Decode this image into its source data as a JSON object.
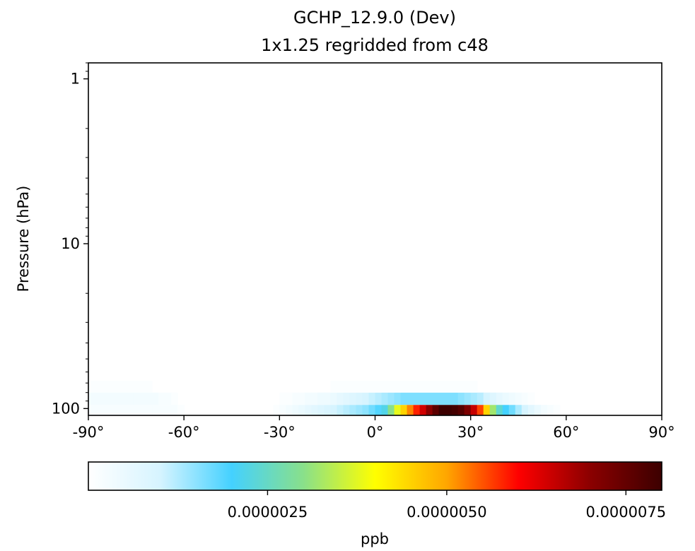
{
  "chart_data": {
    "type": "heatmap",
    "title": "GCHP_12.9.0 (Dev)",
    "subtitle": "1x1.25 regridded from c48",
    "xlabel": "",
    "ylabel": "Pressure (hPa)",
    "xlim": [
      -90,
      90
    ],
    "ylim": [
      110,
      0.8
    ],
    "y_scale": "log",
    "xticks": [
      {
        "value": -90,
        "label": "-90°"
      },
      {
        "value": -60,
        "label": "-60°"
      },
      {
        "value": -30,
        "label": "-30°"
      },
      {
        "value": 0,
        "label": "0°"
      },
      {
        "value": 30,
        "label": "30°"
      },
      {
        "value": 60,
        "label": "60°"
      },
      {
        "value": 90,
        "label": "90°"
      }
    ],
    "yticks": [
      {
        "value": 1,
        "label": "1"
      },
      {
        "value": 10,
        "label": "10"
      },
      {
        "value": 100,
        "label": "100"
      }
    ],
    "colormap": [
      "#ffffff",
      "#d6f4ff",
      "#44d1ff",
      "#89e08a",
      "#ffff00",
      "#ffa600",
      "#ff0000",
      "#8b0000",
      "#3c0000"
    ],
    "colorbar": {
      "label": "ppb",
      "min": 0,
      "max": 8e-06,
      "ticks": [
        {
          "value": 2.5e-06,
          "label": "0.0000025"
        },
        {
          "value": 5e-06,
          "label": "0.0000050"
        },
        {
          "value": 7.5e-06,
          "label": "0.0000075"
        }
      ]
    },
    "layers": [
      {
        "pressure_top": 95,
        "pressure_bottom": 110,
        "lat_step": 2,
        "lat_start": -90,
        "values": [
          2e-07,
          2e-07,
          2e-07,
          2e-07,
          2e-07,
          2e-07,
          2e-07,
          2e-07,
          2e-07,
          2e-07,
          2e-07,
          2e-07,
          2e-07,
          2e-07,
          1e-07,
          0,
          0,
          0,
          0,
          0,
          0,
          0,
          0,
          0,
          0,
          0,
          0,
          0,
          0,
          1e-07,
          2e-07,
          3e-07,
          4e-07,
          5e-07,
          6e-07,
          7e-07,
          8e-07,
          9e-07,
          1e-06,
          1.1e-06,
          1.2e-06,
          1.3e-06,
          1.4e-06,
          1.5e-06,
          1.7e-06,
          1.9e-06,
          2.2e-06,
          3e-06,
          3.8e-06,
          4.5e-06,
          5.2e-06,
          5.8e-06,
          6.4e-06,
          7e-06,
          7.6e-06,
          8e-06,
          8e-06,
          7.9e-06,
          7.7e-06,
          7.2e-06,
          6.5e-06,
          5.6e-06,
          4.5e-06,
          3.2e-06,
          2.4e-06,
          2e-06,
          1.7e-06,
          1.3e-06,
          1e-06,
          7e-07,
          5e-07,
          3e-07,
          2e-07,
          1e-07,
          0,
          0,
          0,
          0,
          0,
          0,
          0,
          0,
          0,
          0,
          0,
          0,
          0,
          0,
          0,
          0
        ]
      },
      {
        "pressure_top": 80,
        "pressure_bottom": 95,
        "lat_step": 2,
        "lat_start": -90,
        "values": [
          3e-07,
          3e-07,
          3e-07,
          3e-07,
          3e-07,
          3e-07,
          3e-07,
          3e-07,
          3e-07,
          3e-07,
          3e-07,
          2e-07,
          2e-07,
          1e-07,
          0,
          0,
          0,
          0,
          0,
          0,
          0,
          0,
          0,
          0,
          0,
          0,
          0,
          0,
          0,
          0,
          1e-07,
          1e-07,
          2e-07,
          2e-07,
          3e-07,
          3e-07,
          4e-07,
          4e-07,
          5e-07,
          6e-07,
          7e-07,
          8e-07,
          9e-07,
          1e-06,
          1.1e-06,
          1.2e-06,
          1.3e-06,
          1.4e-06,
          1.5e-06,
          1.6e-06,
          1.6e-06,
          1.6e-06,
          1.6e-06,
          1.6e-06,
          1.6e-06,
          1.6e-06,
          1.6e-06,
          1.6e-06,
          1.5e-06,
          1.4e-06,
          1.3e-06,
          1.2e-06,
          1e-06,
          8e-07,
          6e-07,
          5e-07,
          4e-07,
          3e-07,
          2e-07,
          1e-07,
          0,
          0,
          0,
          0,
          0,
          0,
          0,
          0,
          0,
          0,
          0,
          0,
          0,
          0,
          0,
          0,
          0,
          0,
          0,
          0
        ]
      },
      {
        "pressure_top": 68,
        "pressure_bottom": 80,
        "lat_step": 2,
        "lat_start": -90,
        "values": [
          1e-07,
          1e-07,
          1e-07,
          1e-07,
          1e-07,
          1e-07,
          1e-07,
          1e-07,
          1e-07,
          1e-07,
          0,
          0,
          0,
          0,
          0,
          0,
          0,
          0,
          0,
          0,
          0,
          0,
          0,
          0,
          0,
          0,
          0,
          0,
          0,
          0,
          0,
          0,
          0,
          0,
          0,
          0,
          0,
          0,
          1e-07,
          1e-07,
          1e-07,
          1e-07,
          1e-07,
          1e-07,
          1e-07,
          1e-07,
          1e-07,
          1e-07,
          1e-07,
          1e-07,
          1e-07,
          1e-07,
          1e-07,
          1e-07,
          1e-07,
          1e-07,
          1e-07,
          1e-07,
          1e-07,
          1e-07,
          1e-07,
          0,
          0,
          0,
          0,
          0,
          0,
          0,
          0,
          0,
          0,
          0,
          0,
          0,
          0,
          0,
          0,
          0,
          0,
          0,
          0,
          0,
          0,
          0,
          0,
          0,
          0,
          0,
          0,
          0
        ]
      }
    ]
  }
}
